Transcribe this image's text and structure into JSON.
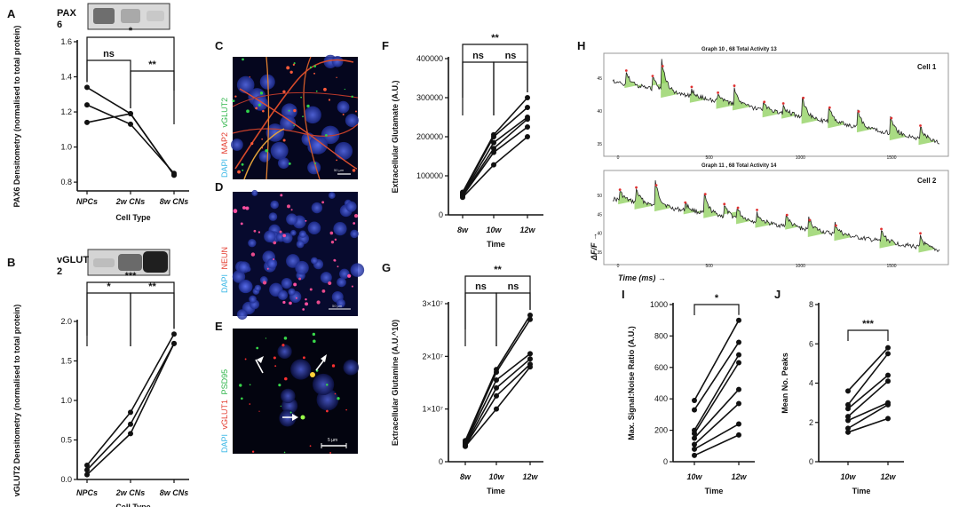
{
  "panel_labels": [
    "A",
    "B",
    "C",
    "D",
    "E",
    "F",
    "G",
    "H",
    "I",
    "J"
  ],
  "micrographs": {
    "C": {
      "stains": [
        {
          "text": "DAPI",
          "color": "#3ab7e6"
        },
        {
          "text": "MAP2",
          "color": "#e33b2e"
        },
        {
          "text": "vGLUT2",
          "color": "#2fb54a"
        }
      ],
      "scale": "50 µm"
    },
    "D": {
      "stains": [
        {
          "text": "DAPI",
          "color": "#3ab7e6"
        },
        {
          "text": "NEUN",
          "color": "#e33b2e"
        }
      ],
      "scale": "50 µm"
    },
    "E": {
      "stains": [
        {
          "text": "DAPI",
          "color": "#3ab7e6"
        },
        {
          "text": "vGLUT1",
          "color": "#e33b2e"
        },
        {
          "text": "PSD95",
          "color": "#2fb54a"
        }
      ],
      "scale": "5 µm"
    }
  },
  "traces": {
    "top": {
      "title": "Graph 10 , 68     Total Activity 13",
      "cell": "Cell 1",
      "yticks": [
        "45",
        "40",
        "35"
      ],
      "xticks": [
        "0",
        "500",
        "1000",
        "1500"
      ]
    },
    "bottom": {
      "title": "Graph 11 , 68     Total Activity 14",
      "cell": "Cell 2",
      "yticks": [
        "50",
        "45",
        "40",
        "35"
      ],
      "xticks": [
        "0",
        "500",
        "1000",
        "1500"
      ]
    },
    "ylabel": "ΔF/F →",
    "xlabel": "Time (ms) →"
  },
  "chart_data": [
    {
      "panel": "A",
      "type": "line",
      "blot": "PAX 6",
      "categories": [
        "NPCs",
        "2w CNs",
        "8w CNs"
      ],
      "series": [
        {
          "values": [
            1.34,
            1.19,
            0.84
          ]
        },
        {
          "values": [
            1.24,
            1.13,
            0.85
          ]
        },
        {
          "values": [
            1.14,
            1.19,
            0.84
          ]
        }
      ],
      "ylabel": "PAX6 Densitometry (normalised to total protein)",
      "xlabel": "Cell Type",
      "ylim": [
        0.75,
        1.6
      ],
      "yticks": [
        0.8,
        1.0,
        1.2,
        1.4,
        1.6
      ],
      "ytick_labels": [
        "0.8",
        "1.0",
        "1.2",
        "1.4",
        "1.6"
      ],
      "significance": [
        {
          "from": 0,
          "to": 1,
          "label": "ns"
        },
        {
          "from": 1,
          "to": 2,
          "label": "**"
        },
        {
          "from": 0,
          "to": 2,
          "label": "*"
        }
      ]
    },
    {
      "panel": "B",
      "type": "line",
      "blot": "vGLUT 2",
      "categories": [
        "NPCs",
        "2w CNs",
        "8w CNs"
      ],
      "series": [
        {
          "values": [
            0.18,
            0.85,
            1.84
          ]
        },
        {
          "values": [
            0.12,
            0.7,
            1.72
          ]
        },
        {
          "values": [
            0.06,
            0.58,
            1.72
          ]
        }
      ],
      "ylabel": "vGLUT2 Densitometry (normalised to total protein)",
      "xlabel": "Cell Type",
      "ylim": [
        0,
        2.0
      ],
      "yticks": [
        0,
        0.5,
        1.0,
        1.5,
        2.0
      ],
      "ytick_labels": [
        "0.0",
        "0.5",
        "1.0",
        "1.5",
        "2.0"
      ],
      "significance": [
        {
          "from": 0,
          "to": 1,
          "label": "*"
        },
        {
          "from": 1,
          "to": 2,
          "label": "**"
        },
        {
          "from": 0,
          "to": 2,
          "label": "***"
        }
      ]
    },
    {
      "panel": "F",
      "type": "line",
      "categories": [
        "8w",
        "10w",
        "12w"
      ],
      "series": [
        {
          "values": [
            58000,
            205000,
            300000
          ]
        },
        {
          "values": [
            55000,
            200000,
            275000
          ]
        },
        {
          "values": [
            52000,
            185000,
            250000
          ]
        },
        {
          "values": [
            50000,
            170000,
            245000
          ]
        },
        {
          "values": [
            48000,
            160000,
            225000
          ]
        },
        {
          "values": [
            45000,
            128000,
            200000
          ]
        }
      ],
      "ylabel": "Extracellular Glutamate (A.U.)",
      "xlabel": "Time",
      "ylim": [
        0,
        400000
      ],
      "yticks": [
        0,
        100000,
        200000,
        300000,
        400000
      ],
      "ytick_labels": [
        "0",
        "100000",
        "200000",
        "300000",
        "400000"
      ],
      "significance": [
        {
          "from": 0,
          "to": 1,
          "label": "ns"
        },
        {
          "from": 1,
          "to": 2,
          "label": "ns"
        },
        {
          "from": 0,
          "to": 2,
          "label": "**"
        }
      ]
    },
    {
      "panel": "G",
      "type": "line",
      "categories": [
        "8w",
        "10w",
        "12w"
      ],
      "series": [
        {
          "values": [
            4.0,
            17.5,
            27.8
          ]
        },
        {
          "values": [
            3.7,
            17.0,
            27.0
          ]
        },
        {
          "values": [
            3.5,
            15.5,
            20.5
          ]
        },
        {
          "values": [
            3.2,
            14.0,
            19.5
          ]
        },
        {
          "values": [
            3.0,
            12.5,
            18.5
          ]
        },
        {
          "values": [
            2.9,
            10.0,
            18.0
          ]
        }
      ],
      "ylabel": "Extracellular Glutamine  (A.U.^10)",
      "xlabel": "Time",
      "ylim": [
        0,
        30
      ],
      "yticks": [
        0,
        10,
        20,
        30
      ],
      "ytick_labels": [
        "0",
        "1×10⁷",
        "2×10⁷",
        "3×10⁷"
      ],
      "significance": [
        {
          "from": 0,
          "to": 1,
          "label": "ns"
        },
        {
          "from": 1,
          "to": 2,
          "label": "ns"
        },
        {
          "from": 0,
          "to": 2,
          "label": "**"
        }
      ]
    },
    {
      "panel": "I",
      "type": "line",
      "categories": [
        "10w",
        "12w"
      ],
      "series": [
        {
          "values": [
            390,
            900
          ]
        },
        {
          "values": [
            330,
            760
          ]
        },
        {
          "values": [
            200,
            680
          ]
        },
        {
          "values": [
            180,
            630
          ]
        },
        {
          "values": [
            150,
            460
          ]
        },
        {
          "values": [
            110,
            370
          ]
        },
        {
          "values": [
            80,
            240
          ]
        },
        {
          "values": [
            40,
            170
          ]
        }
      ],
      "ylabel": "Max. Signal:Noise Ratio (A.U.)",
      "xlabel": "Time",
      "ylim": [
        0,
        1000
      ],
      "yticks": [
        0,
        200,
        400,
        600,
        800,
        1000
      ],
      "ytick_labels": [
        "0",
        "200",
        "400",
        "600",
        "800",
        "1000"
      ],
      "significance": [
        {
          "from": 0,
          "to": 1,
          "label": "*"
        }
      ]
    },
    {
      "panel": "J",
      "type": "line",
      "categories": [
        "10w",
        "12w"
      ],
      "series": [
        {
          "values": [
            3.6,
            5.8
          ]
        },
        {
          "values": [
            2.9,
            5.5
          ]
        },
        {
          "values": [
            2.7,
            4.4
          ]
        },
        {
          "values": [
            2.3,
            4.1
          ]
        },
        {
          "values": [
            2.1,
            3.0
          ]
        },
        {
          "values": [
            1.7,
            2.9
          ]
        },
        {
          "values": [
            1.5,
            2.2
          ]
        }
      ],
      "ylabel": "Mean No. Peaks",
      "xlabel": "Time",
      "ylim": [
        0,
        8
      ],
      "yticks": [
        0,
        2,
        4,
        6,
        8
      ],
      "ytick_labels": [
        "0",
        "2",
        "4",
        "6",
        "8"
      ],
      "significance": [
        {
          "from": 0,
          "to": 1,
          "label": "***"
        }
      ]
    }
  ]
}
